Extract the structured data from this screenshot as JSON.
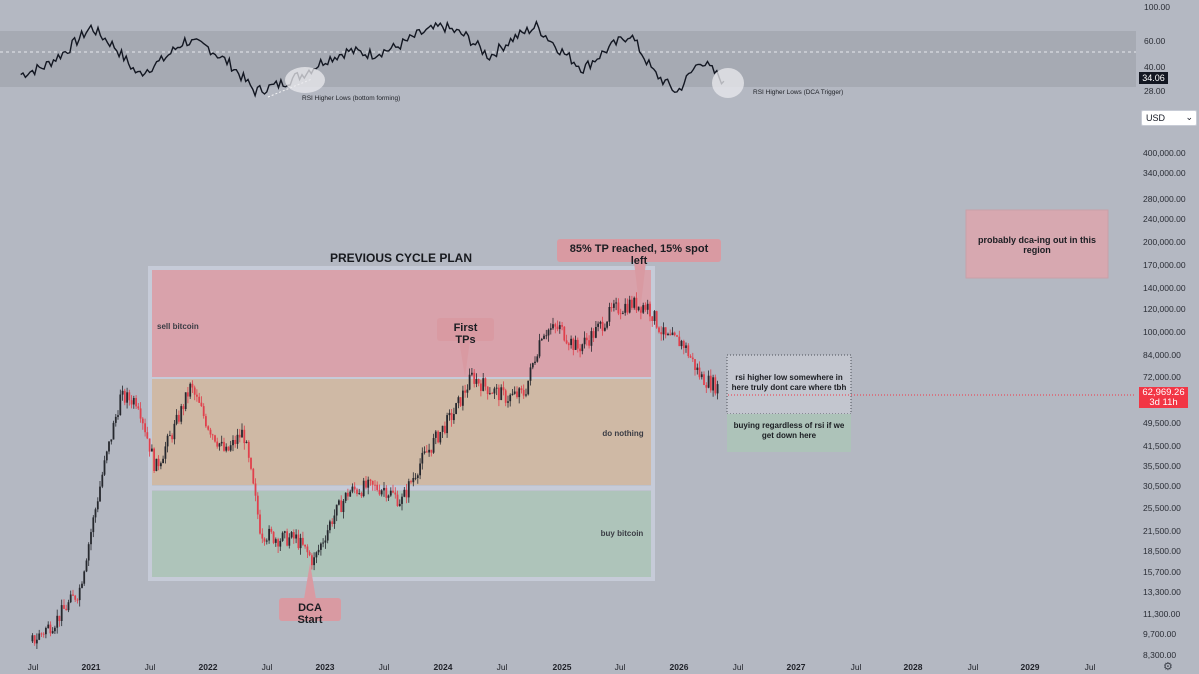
{
  "rsi_panel": {
    "ticks": [
      "100.00",
      "60.00",
      "40.00",
      "28.00"
    ],
    "current_value": "34.06",
    "annotations": {
      "left": "RSI Higher Lows (bottom forming)",
      "right": "RSI Higher Lows (DCA Trigger)"
    }
  },
  "price_axis": {
    "currency": "USD",
    "ticks": [
      "480,000.00",
      "400,000.00",
      "340,000.00",
      "280,000.00",
      "240,000.00",
      "200,000.00",
      "170,000.00",
      "140,000.00",
      "120,000.00",
      "100,000.00",
      "84,000.00",
      "72,000.00",
      "49,500.00",
      "41,500.00",
      "35,500.00",
      "30,500.00",
      "25,500.00",
      "21,500.00",
      "18,500.00",
      "15,700.00",
      "13,300.00",
      "11,300.00",
      "9,700.00",
      "8,300.00"
    ],
    "current_price": "62,969.26",
    "countdown": "3d 11h"
  },
  "time_axis": {
    "labels": [
      "Jul",
      "2021",
      "Jul",
      "2022",
      "Jul",
      "2023",
      "Jul",
      "2024",
      "Jul",
      "2025",
      "Jul",
      "2026",
      "Jul",
      "2027",
      "Jul",
      "2028",
      "Jul",
      "2029",
      "Jul"
    ],
    "bold": [
      false,
      true,
      false,
      true,
      false,
      true,
      false,
      true,
      false,
      true,
      false,
      true,
      false,
      true,
      false,
      true,
      false,
      true,
      false
    ]
  },
  "plan": {
    "title": "PREVIOUS CYCLE PLAN",
    "zones": {
      "sell": "sell bitcoin",
      "hold": "do nothing",
      "buy": "buy bitcoin"
    },
    "zone_colors": {
      "sell": "#d9a2ab",
      "hold": "#cfb9a5",
      "buy": "#aec4ba"
    }
  },
  "callouts": {
    "tp_reached": "85% TP reached, 15% spot left",
    "first_tps": "First TPs",
    "dca_start": "DCA Start",
    "dca_out": "probably dca-ing out in this region",
    "rsi_box": "rsi higher low somewhere in here truly dont care where tbh",
    "buy_box": "buying regardless of rsi if we get down here"
  },
  "colors": {
    "up": "#26282e",
    "down": "#e0404c",
    "price_label": "#f23645",
    "rsi_line": "#131722"
  },
  "chart_data": [
    {
      "type": "line",
      "name": "RSI",
      "x": [
        2020.4,
        2020.6,
        2020.8,
        2021.0,
        2021.2,
        2021.4,
        2021.6,
        2021.8,
        2022.0,
        2022.2,
        2022.4,
        2022.6,
        2022.8,
        2023.0,
        2023.2,
        2023.4,
        2023.6,
        2023.8,
        2024.0,
        2024.2,
        2024.4,
        2024.6,
        2024.8,
        2025.0,
        2025.2,
        2025.4,
        2025.6,
        2025.8,
        2026.0,
        2026.2,
        2026.4
      ],
      "values": [
        40,
        47,
        62,
        82,
        65,
        40,
        52,
        70,
        64,
        48,
        25,
        31,
        40,
        53,
        61,
        58,
        64,
        76,
        83,
        74,
        56,
        72,
        83,
        62,
        45,
        62,
        76,
        42,
        24,
        53,
        34.06
      ],
      "ylim": [
        20,
        100
      ]
    },
    {
      "type": "line",
      "name": "BTCUSD",
      "x": [
        2020.5,
        2020.7,
        2020.9,
        2021.1,
        2021.25,
        2021.4,
        2021.55,
        2021.7,
        2021.85,
        2022.0,
        2022.15,
        2022.3,
        2022.45,
        2022.6,
        2022.75,
        2022.9,
        2023.05,
        2023.2,
        2023.35,
        2023.5,
        2023.65,
        2023.8,
        2023.95,
        2024.1,
        2024.25,
        2024.4,
        2024.55,
        2024.7,
        2024.85,
        2025.0,
        2025.15,
        2025.3,
        2025.45,
        2025.6,
        2025.75,
        2025.9,
        2026.05,
        2026.2,
        2026.35
      ],
      "values": [
        9200,
        10800,
        13500,
        33000,
        58000,
        57000,
        34000,
        45000,
        63000,
        47000,
        38000,
        45000,
        21000,
        20000,
        20000,
        16800,
        23000,
        28500,
        29500,
        29300,
        26500,
        35000,
        43000,
        52000,
        68000,
        62000,
        58000,
        60000,
        96000,
        98000,
        84000,
        95000,
        112000,
        118000,
        116000,
        91000,
        88000,
        68000,
        62969.26
      ],
      "log_scale": true,
      "ylim": [
        8300,
        480000
      ]
    }
  ]
}
